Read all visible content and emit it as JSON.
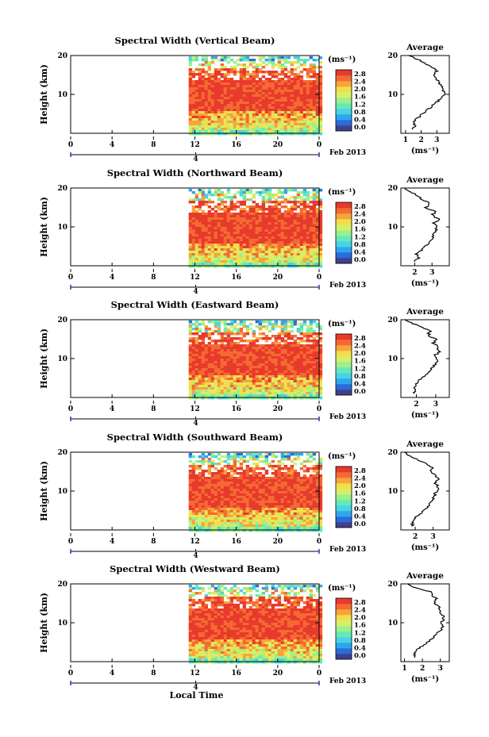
{
  "figure": {
    "date_label": "Feb 2013",
    "xlabel": "Local Time",
    "day_label": "4",
    "ylabel": "Height (km)",
    "unit_label": "(ms⁻¹)",
    "average_title": "Average",
    "colorbar_ticks": [
      "2.8",
      "2.4",
      "2.0",
      "1.6",
      "1.2",
      "0.8",
      "0.4",
      "0.0"
    ],
    "palette": [
      "#40408a",
      "#2a6cdb",
      "#2fa6ee",
      "#48d3e6",
      "#66e8b8",
      "#9cf08a",
      "#d6f06b",
      "#f3de4a",
      "#f7a43a",
      "#f46a32",
      "#e83a2c"
    ]
  },
  "chart_data": [
    {
      "type": "heatmap",
      "title": "Spectral Width (Vertical Beam)",
      "x_ticks": [
        "0",
        "4",
        "8",
        "12",
        "16",
        "20",
        "0"
      ],
      "xlim": [
        0,
        24
      ],
      "ylim": [
        0,
        20
      ],
      "y_ticks": [
        "20",
        "10"
      ],
      "data_start_hour": 11.4,
      "profile": {
        "x_ticks": [
          "1",
          "2",
          "3"
        ],
        "xlim": [
          0.7,
          3.8
        ],
        "heights": [
          1,
          2,
          3,
          4,
          5,
          6,
          7,
          8,
          9,
          10,
          11,
          12,
          13,
          14,
          15,
          16,
          17,
          18,
          19,
          20
        ],
        "values": [
          1.4,
          1.6,
          1.5,
          1.8,
          2.1,
          2.4,
          2.7,
          3.0,
          3.3,
          3.5,
          3.4,
          3.3,
          3.1,
          3.0,
          2.8,
          3.0,
          2.7,
          2.2,
          1.8,
          1.2
        ]
      }
    },
    {
      "type": "heatmap",
      "title": "Spectral Width (Northward Beam)",
      "x_ticks": [
        "0",
        "4",
        "8",
        "12",
        "16",
        "20",
        "0"
      ],
      "xlim": [
        0,
        24
      ],
      "ylim": [
        0,
        20
      ],
      "y_ticks": [
        "20",
        "10"
      ],
      "data_start_hour": 11.4,
      "profile": {
        "x_ticks": [
          "2",
          "3"
        ],
        "xlim": [
          1.2,
          4.0
        ],
        "heights": [
          1,
          2,
          3,
          4,
          5,
          6,
          7,
          8,
          9,
          10,
          11,
          12,
          13,
          14,
          15,
          16,
          17,
          18,
          19,
          20
        ],
        "values": [
          2.0,
          2.2,
          2.1,
          2.4,
          2.6,
          2.8,
          3.0,
          3.1,
          3.2,
          3.3,
          3.1,
          3.4,
          3.0,
          3.2,
          2.6,
          2.9,
          2.4,
          2.2,
          1.8,
          1.4
        ]
      }
    },
    {
      "type": "heatmap",
      "title": "Spectral Width (Eastward Beam)",
      "x_ticks": [
        "0",
        "4",
        "8",
        "12",
        "16",
        "20",
        "0"
      ],
      "xlim": [
        0,
        24
      ],
      "ylim": [
        0,
        20
      ],
      "y_ticks": [
        "20",
        "10"
      ],
      "data_start_hour": 11.4,
      "profile": {
        "x_ticks": [
          "2",
          "3"
        ],
        "xlim": [
          1.2,
          3.7
        ],
        "heights": [
          1,
          2,
          3,
          4,
          5,
          6,
          7,
          8,
          9,
          10,
          11,
          12,
          13,
          14,
          15,
          16,
          17,
          18,
          19,
          20
        ],
        "values": [
          1.9,
          2.0,
          1.9,
          2.1,
          2.3,
          2.5,
          2.7,
          2.9,
          3.0,
          3.1,
          3.0,
          3.2,
          3.1,
          2.9,
          3.0,
          2.6,
          2.7,
          2.3,
          1.8,
          1.4
        ]
      }
    },
    {
      "type": "heatmap",
      "title": "Spectral Width (Southward Beam)",
      "x_ticks": [
        "0",
        "4",
        "8",
        "12",
        "16",
        "20",
        "0"
      ],
      "xlim": [
        0,
        24
      ],
      "ylim": [
        0,
        20
      ],
      "y_ticks": [
        "20",
        "10"
      ],
      "data_start_hour": 11.4,
      "profile": {
        "x_ticks": [
          "2",
          "3"
        ],
        "xlim": [
          1.2,
          3.9
        ],
        "heights": [
          1,
          2,
          3,
          4,
          5,
          6,
          7,
          8,
          9,
          10,
          11,
          12,
          13,
          14,
          15,
          16,
          17,
          18,
          19,
          20
        ],
        "values": [
          1.8,
          1.9,
          2.0,
          2.2,
          2.5,
          2.7,
          2.9,
          3.0,
          3.1,
          3.2,
          3.3,
          3.1,
          3.3,
          3.1,
          2.9,
          3.0,
          2.6,
          2.2,
          1.7,
          1.4
        ]
      }
    },
    {
      "type": "heatmap",
      "title": "Spectral Width (Westward Beam)",
      "x_ticks": [
        "0",
        "4",
        "8",
        "12",
        "16",
        "20",
        "0"
      ],
      "xlim": [
        0,
        24
      ],
      "ylim": [
        0,
        20
      ],
      "y_ticks": [
        "20",
        "10"
      ],
      "data_start_hour": 11.4,
      "profile": {
        "x_ticks": [
          "1",
          "2",
          "3"
        ],
        "xlim": [
          0.8,
          3.5
        ],
        "heights": [
          1,
          2,
          3,
          4,
          5,
          6,
          7,
          8,
          9,
          10,
          11,
          12,
          13,
          14,
          15,
          16,
          17,
          18,
          19,
          20
        ],
        "values": [
          1.5,
          1.6,
          1.7,
          2.0,
          2.3,
          2.6,
          2.8,
          3.0,
          3.1,
          3.0,
          3.2,
          3.1,
          3.0,
          2.9,
          2.7,
          2.8,
          2.6,
          2.4,
          1.6,
          1.2
        ]
      }
    }
  ]
}
